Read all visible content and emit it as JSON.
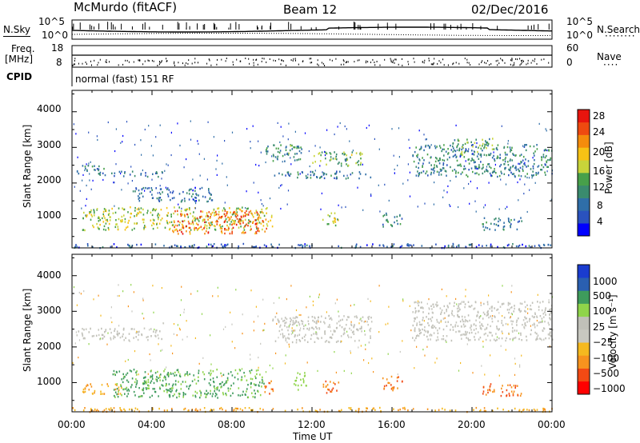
{
  "header": {
    "station": "McMurdo (fitACF)",
    "beam": "Beam 12",
    "date": "02/Dec/2016"
  },
  "noise_panel": {
    "left_label": "N.Sky",
    "right_label": "N.Search",
    "left_ticks": [
      "10^5",
      "10^0"
    ],
    "right_ticks": [
      "10^5",
      "10^0"
    ]
  },
  "freq_panel": {
    "left_label_top": "Freq.",
    "left_label_unit": "[MHz]",
    "left_ticks": [
      "18",
      "8"
    ],
    "right_label": "Nave",
    "right_ticks": [
      "60",
      "0"
    ],
    "cpid_label": "CPID",
    "mode_text": "normal (fast) 151 RF"
  },
  "x_axis": {
    "label": "Time UT",
    "ticks": [
      "00:00",
      "04:00",
      "08:00",
      "12:00",
      "16:00",
      "20:00",
      "00:00"
    ]
  },
  "chart_data": [
    {
      "type": "heatmap",
      "title": "",
      "xlabel": "Time UT",
      "ylabel": "Slant Range [km]",
      "xlim": [
        0,
        24
      ],
      "ylim": [
        180,
        4600
      ],
      "yticks": [
        "1000",
        "2000",
        "3000",
        "4000"
      ],
      "colorbar": {
        "label": "Power [dB]",
        "ticks": [
          "28",
          "24",
          "20",
          "16",
          "12",
          "8",
          "4"
        ],
        "colors": [
          "#0000ff",
          "#2a52be",
          "#2f6ea8",
          "#3a8b6e",
          "#47a04a",
          "#c8d43a",
          "#f7c215",
          "#f58c0c",
          "#ef4a10",
          "#e8150e"
        ]
      },
      "echo_regions": [
        {
          "t0": 0.0,
          "t1": 24.0,
          "r0": 200,
          "r1": 320,
          "level": 0.15
        },
        {
          "t0": 0.2,
          "t1": 1.6,
          "r0": 2250,
          "r1": 2550,
          "level": 0.3
        },
        {
          "t0": 1.6,
          "t1": 4.5,
          "r0": 2200,
          "r1": 2350,
          "level": 0.2
        },
        {
          "t0": 0.5,
          "t1": 10.0,
          "r0": 700,
          "r1": 1350,
          "level": 0.55
        },
        {
          "t0": 5.0,
          "t1": 9.8,
          "r0": 600,
          "r1": 1250,
          "level": 0.85
        },
        {
          "t0": 3.0,
          "t1": 7.0,
          "r0": 1500,
          "r1": 1900,
          "level": 0.2
        },
        {
          "t0": 9.5,
          "t1": 11.5,
          "r0": 2600,
          "r1": 3100,
          "level": 0.35
        },
        {
          "t0": 12.0,
          "t1": 14.5,
          "r0": 2500,
          "r1": 2900,
          "level": 0.45
        },
        {
          "t0": 10.0,
          "t1": 15.0,
          "r0": 2150,
          "r1": 2350,
          "level": 0.25
        },
        {
          "t0": 12.5,
          "t1": 13.3,
          "r0": 800,
          "r1": 1200,
          "level": 0.55
        },
        {
          "t0": 17.0,
          "t1": 24.0,
          "r0": 2200,
          "r1": 3100,
          "level": 0.3
        },
        {
          "t0": 19.0,
          "t1": 21.0,
          "r0": 2800,
          "r1": 3300,
          "level": 0.4
        },
        {
          "t0": 20.5,
          "t1": 22.5,
          "r0": 700,
          "r1": 1050,
          "level": 0.3
        },
        {
          "t0": 15.5,
          "t1": 16.5,
          "r0": 800,
          "r1": 1200,
          "level": 0.3
        }
      ]
    },
    {
      "type": "heatmap",
      "title": "",
      "xlabel": "Time UT",
      "ylabel": "Slant Range [km]",
      "xlim": [
        0,
        24
      ],
      "ylim": [
        180,
        4600
      ],
      "yticks": [
        "1000",
        "2000",
        "3000",
        "4000"
      ],
      "colorbar": {
        "label": "Velocity [m s⁻¹]",
        "ticks": [
          "1000",
          "500",
          "100",
          "25",
          "−25",
          "−100",
          "−500",
          "−1000"
        ],
        "colors": [
          "#ff0000",
          "#f24a14",
          "#f7931e",
          "#f5b91f",
          "#c8c8c0",
          "#c0c0b8",
          "#8fd44a",
          "#3e9b5c",
          "#2a5fb0",
          "#1a3ccf"
        ]
      },
      "echo_regions": [
        {
          "t0": 0.0,
          "t1": 24.0,
          "r0": 200,
          "r1": 320,
          "vel": "neg-small"
        },
        {
          "t0": 0.2,
          "t1": 4.5,
          "r0": 2200,
          "r1": 2550,
          "vel": "grey"
        },
        {
          "t0": 0.5,
          "t1": 2.5,
          "r0": 700,
          "r1": 1000,
          "vel": "neg-small"
        },
        {
          "t0": 2.0,
          "t1": 9.6,
          "r0": 600,
          "r1": 1400,
          "vel": "pos-mid"
        },
        {
          "t0": 9.6,
          "t1": 10.1,
          "r0": 700,
          "r1": 1100,
          "vel": "neg-mid"
        },
        {
          "t0": 10.0,
          "t1": 15.0,
          "r0": 2150,
          "r1": 2900,
          "vel": "grey"
        },
        {
          "t0": 11.0,
          "t1": 11.7,
          "r0": 800,
          "r1": 1300,
          "vel": "pos-small"
        },
        {
          "t0": 12.5,
          "t1": 13.3,
          "r0": 700,
          "r1": 1100,
          "vel": "neg-mid"
        },
        {
          "t0": 17.0,
          "t1": 24.0,
          "r0": 2200,
          "r1": 3300,
          "vel": "grey"
        },
        {
          "t0": 20.5,
          "t1": 22.5,
          "r0": 650,
          "r1": 1000,
          "vel": "neg-mid"
        },
        {
          "t0": 15.5,
          "t1": 16.5,
          "r0": 800,
          "r1": 1200,
          "vel": "neg-mid"
        }
      ]
    }
  ]
}
